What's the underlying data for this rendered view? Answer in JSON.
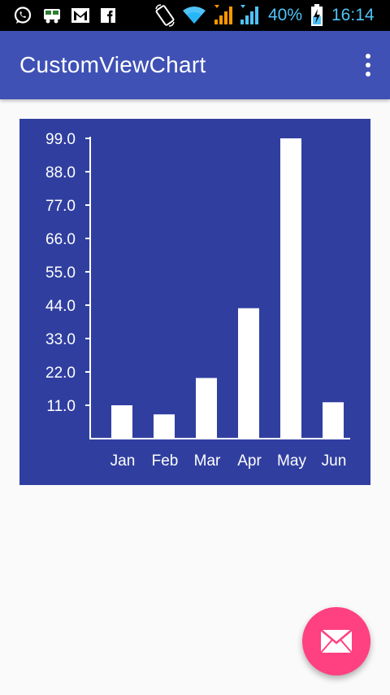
{
  "status_bar": {
    "battery_percent": "40%",
    "time": "16:14",
    "left_icons": [
      "whatsapp-icon",
      "bus-app-icon",
      "gmail-icon",
      "facebook-icon"
    ],
    "right_icons": [
      "rotate-icon",
      "wifi-icon",
      "signal-sim1-icon",
      "signal-sim2-icon",
      "battery-charging-icon"
    ]
  },
  "app_bar": {
    "title": "CustomViewChart",
    "overflow_icon": "more-vert-icon",
    "color": "#3f51b5"
  },
  "chart_data": {
    "type": "bar",
    "categories": [
      "Jan",
      "Feb",
      "Mar",
      "Apr",
      "May",
      "Jun"
    ],
    "values": [
      11,
      8,
      20,
      43,
      99,
      12
    ],
    "ytick_labels": [
      "11.0",
      "22.0",
      "33.0",
      "44.0",
      "55.0",
      "66.0",
      "77.0",
      "88.0",
      "99.0"
    ],
    "ylim": [
      0,
      99
    ],
    "background_color": "#303f9f",
    "bar_color": "#ffffff",
    "grid": false
  },
  "fab": {
    "icon": "email-icon",
    "color": "#ff4081"
  }
}
